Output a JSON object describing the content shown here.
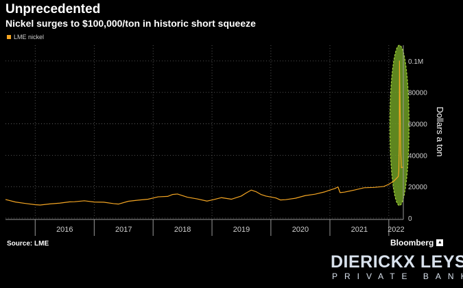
{
  "chart_data": {
    "type": "line",
    "title": "Unprecedented",
    "subtitle": "Nickel surges to $100,000/ton in historic short squeeze",
    "xlabel": "",
    "ylabel": "Dollars a ton",
    "ylim": [
      0,
      110000
    ],
    "xlim": [
      "2015-07-01",
      "2022-04-01"
    ],
    "y_ticks": [
      "0",
      "20000",
      "40000",
      "60000",
      "80000",
      "0.1M"
    ],
    "x_ticks": [
      "2016",
      "2017",
      "2018",
      "2019",
      "2020",
      "2021",
      "2022"
    ],
    "grid": true,
    "legend_position": "top-left",
    "series": [
      {
        "name": "LME nickel",
        "color": "#f5a623",
        "points": [
          [
            "2015-07-01",
            11800
          ],
          [
            "2015-09-01",
            10200
          ],
          [
            "2015-11-01",
            9300
          ],
          [
            "2016-01-01",
            8500
          ],
          [
            "2016-02-01",
            8300
          ],
          [
            "2016-04-01",
            9000
          ],
          [
            "2016-06-01",
            9500
          ],
          [
            "2016-08-01",
            10300
          ],
          [
            "2016-09-01",
            10400
          ],
          [
            "2016-11-01",
            11000
          ],
          [
            "2017-01-01",
            10200
          ],
          [
            "2017-03-01",
            10100
          ],
          [
            "2017-05-01",
            9200
          ],
          [
            "2017-06-01",
            8900
          ],
          [
            "2017-08-01",
            10700
          ],
          [
            "2017-10-01",
            11400
          ],
          [
            "2017-12-01",
            12000
          ],
          [
            "2018-02-01",
            13500
          ],
          [
            "2018-04-01",
            13800
          ],
          [
            "2018-05-01",
            15000
          ],
          [
            "2018-06-01",
            15300
          ],
          [
            "2018-08-01",
            13300
          ],
          [
            "2018-10-01",
            12200
          ],
          [
            "2018-12-01",
            10800
          ],
          [
            "2019-01-01",
            11500
          ],
          [
            "2019-03-01",
            13000
          ],
          [
            "2019-05-01",
            12000
          ],
          [
            "2019-07-01",
            14000
          ],
          [
            "2019-08-01",
            16000
          ],
          [
            "2019-09-01",
            17800
          ],
          [
            "2019-10-01",
            16800
          ],
          [
            "2019-11-01",
            15000
          ],
          [
            "2019-12-01",
            14000
          ],
          [
            "2020-02-01",
            12800
          ],
          [
            "2020-03-01",
            11500
          ],
          [
            "2020-04-01",
            11700
          ],
          [
            "2020-06-01",
            12600
          ],
          [
            "2020-08-01",
            14300
          ],
          [
            "2020-10-01",
            15200
          ],
          [
            "2020-12-01",
            16700
          ],
          [
            "2021-01-01",
            17800
          ],
          [
            "2021-02-01",
            18800
          ],
          [
            "2021-02-20",
            19800
          ],
          [
            "2021-03-05",
            16200
          ],
          [
            "2021-04-01",
            16500
          ],
          [
            "2021-06-01",
            17800
          ],
          [
            "2021-08-01",
            19300
          ],
          [
            "2021-10-01",
            19500
          ],
          [
            "2021-12-01",
            20100
          ],
          [
            "2022-01-01",
            21500
          ],
          [
            "2022-02-01",
            23500
          ],
          [
            "2022-03-01",
            26500
          ],
          [
            "2022-03-04",
            29800
          ],
          [
            "2022-03-07",
            48000
          ],
          [
            "2022-03-08",
            100000
          ],
          [
            "2022-03-16",
            42000
          ],
          [
            "2022-03-20",
            32000
          ],
          [
            "2022-03-31",
            32500
          ]
        ]
      }
    ],
    "annotations": [
      {
        "type": "ellipse",
        "label": "",
        "color": "#6f9d25",
        "x": "2022-03-08",
        "y_range": [
          8000,
          110000
        ]
      }
    ]
  },
  "footer": {
    "source": "Source: LME",
    "bloomberg": "Bloomberg"
  },
  "watermark": {
    "name": "DIERICKX LEYS",
    "sub": "PRIVATE BANK"
  }
}
